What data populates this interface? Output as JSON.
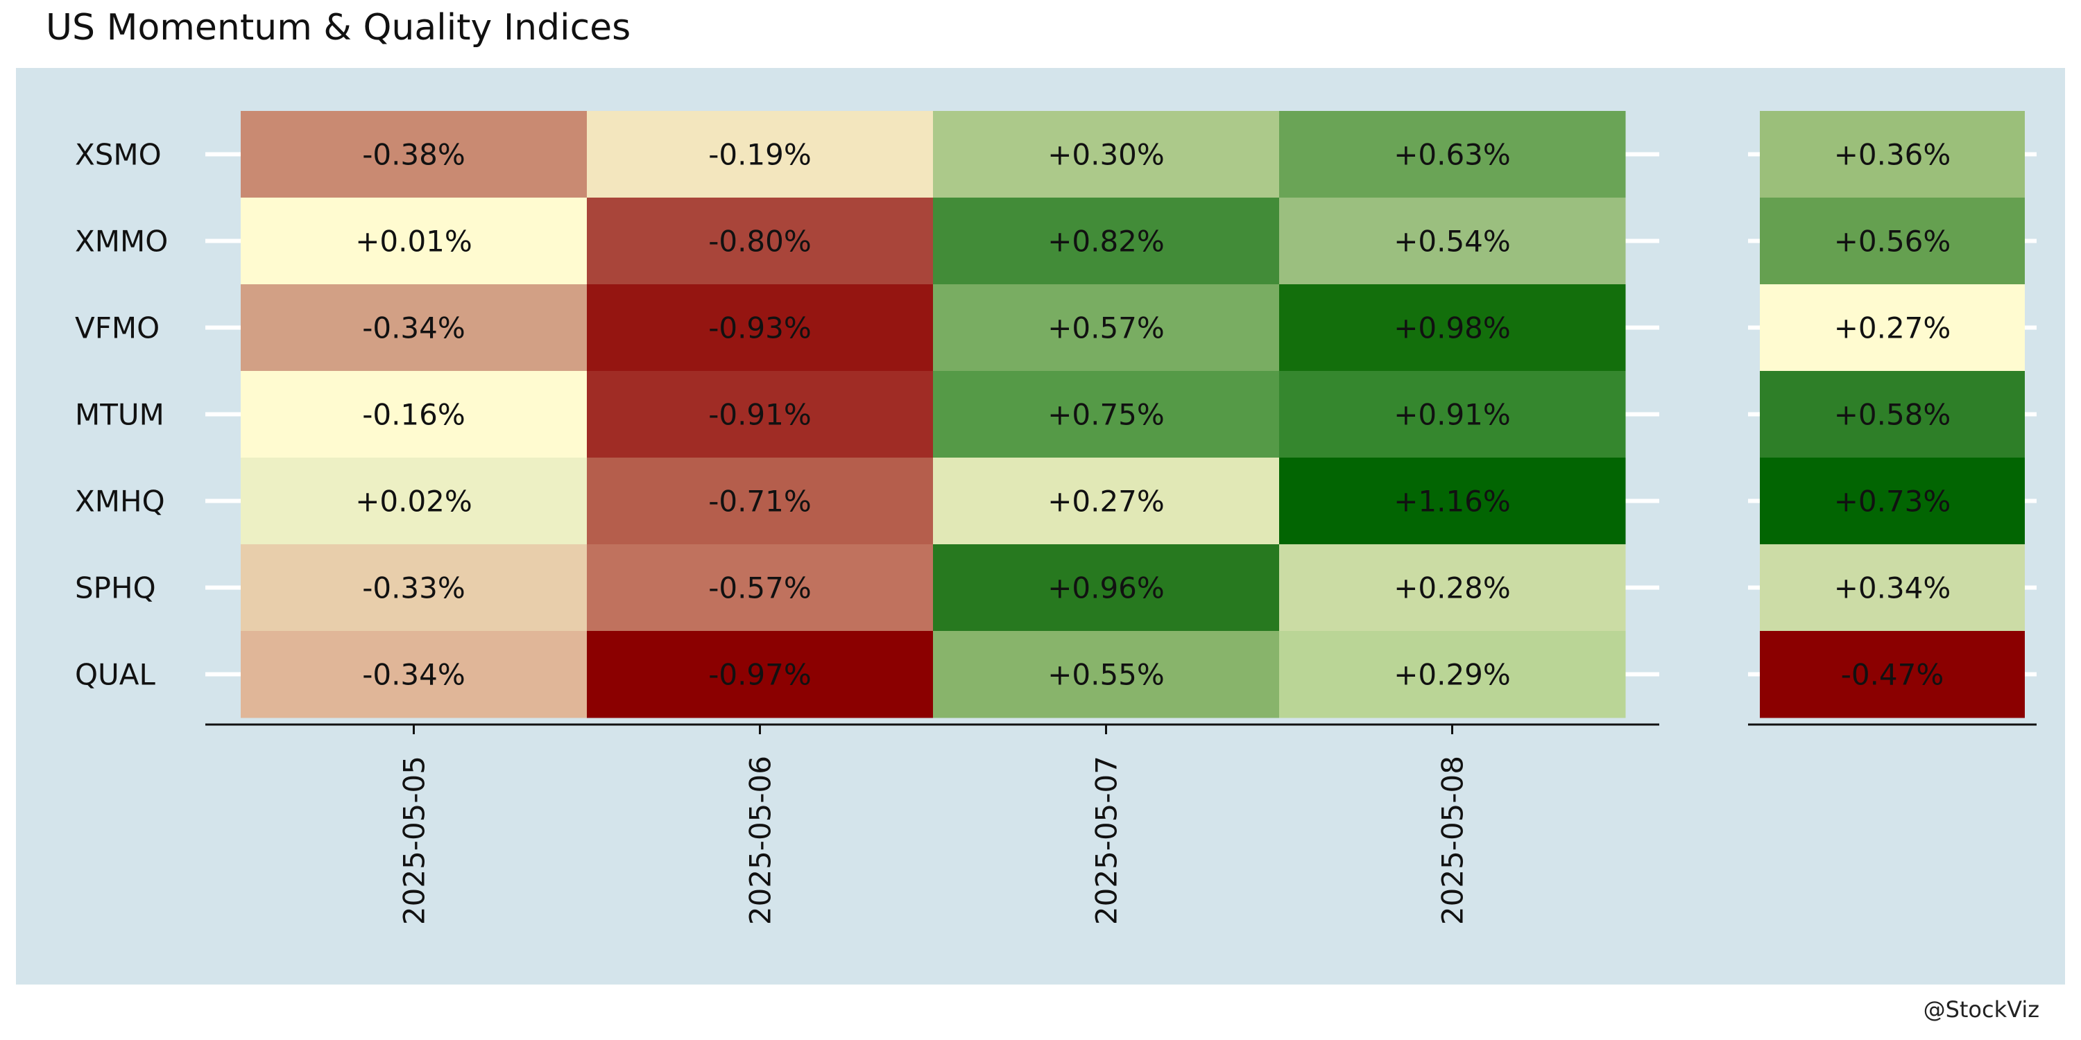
{
  "chart_data": {
    "type": "heatmap",
    "title": "US Momentum & Quality Indices",
    "credit": "@StockViz",
    "rows": [
      "XSMO",
      "XMMO",
      "VFMO",
      "MTUM",
      "XMHQ",
      "SPHQ",
      "QUAL"
    ],
    "columns": [
      "2025-05-05",
      "2025-05-06",
      "2025-05-07",
      "2025-05-08"
    ],
    "cells": [
      [
        {
          "label": "-0.38%",
          "color": "#c98a72"
        },
        {
          "label": "-0.19%",
          "color": "#f3e6be"
        },
        {
          "label": "+0.30%",
          "color": "#acc98a"
        },
        {
          "label": "+0.63%",
          "color": "#6aa456"
        }
      ],
      [
        {
          "label": "+0.01%",
          "color": "#fffbd0"
        },
        {
          "label": "-0.80%",
          "color": "#a9453a"
        },
        {
          "label": "+0.82%",
          "color": "#428c38"
        },
        {
          "label": "+0.54%",
          "color": "#9bbf7f"
        }
      ],
      [
        {
          "label": "-0.34%",
          "color": "#d2a085"
        },
        {
          "label": "-0.93%",
          "color": "#951511"
        },
        {
          "label": "+0.57%",
          "color": "#79ad62"
        },
        {
          "label": "+0.98%",
          "color": "#136f0c"
        }
      ],
      [
        {
          "label": "-0.16%",
          "color": "#fffbd0"
        },
        {
          "label": "-0.91%",
          "color": "#a02c25"
        },
        {
          "label": "+0.75%",
          "color": "#559a47"
        },
        {
          "label": "+0.91%",
          "color": "#35872e"
        }
      ],
      [
        {
          "label": "+0.02%",
          "color": "#edf0c4"
        },
        {
          "label": "-0.71%",
          "color": "#b55e4c"
        },
        {
          "label": "+0.27%",
          "color": "#e1e8b6"
        },
        {
          "label": "+1.16%",
          "color": "#026502"
        }
      ],
      [
        {
          "label": "-0.33%",
          "color": "#e8ceab"
        },
        {
          "label": "-0.57%",
          "color": "#c0725e"
        },
        {
          "label": "+0.96%",
          "color": "#27791f"
        },
        {
          "label": "+0.28%",
          "color": "#cbdca4"
        }
      ],
      [
        {
          "label": "-0.34%",
          "color": "#e0b698"
        },
        {
          "label": "-0.97%",
          "color": "#8b0000"
        },
        {
          "label": "+0.55%",
          "color": "#88b46b"
        },
        {
          "label": "+0.29%",
          "color": "#bad596"
        }
      ]
    ],
    "summary": [
      {
        "label": "+0.36%",
        "color": "#9bbf7a"
      },
      {
        "label": "+0.56%",
        "color": "#65a050"
      },
      {
        "label": "+0.27%",
        "color": "#fffbd0"
      },
      {
        "label": "+0.58%",
        "color": "#2e7f28"
      },
      {
        "label": "+0.73%",
        "color": "#026502"
      },
      {
        "label": "+0.34%",
        "color": "#ccdca6"
      },
      {
        "label": "-0.47%",
        "color": "#8b0000"
      }
    ],
    "panel_background": "#d4e4eb",
    "grid": true,
    "legend": "none"
  }
}
